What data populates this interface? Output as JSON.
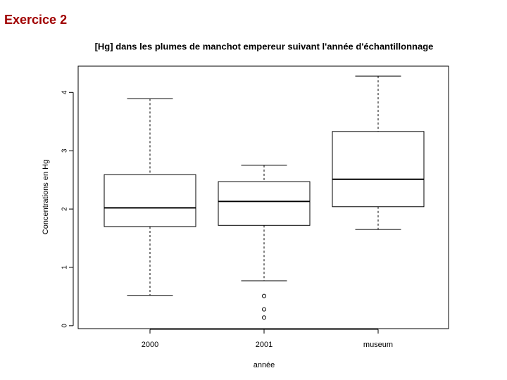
{
  "heading": "Exercice 2",
  "chart_data": {
    "type": "boxplot",
    "title": "[Hg] dans les plumes de manchot empereur suivant l'année d'échantillonnage",
    "x_label": "année",
    "y_label": "Concentrations en Hg",
    "categories": [
      "2000",
      "2001",
      "museum"
    ],
    "boxes": [
      {
        "whisker_low": 0.52,
        "q1": 1.7,
        "median": 2.02,
        "q3": 2.59,
        "whisker_high": 3.89,
        "outliers": []
      },
      {
        "whisker_low": 0.77,
        "q1": 1.72,
        "median": 2.13,
        "q3": 2.47,
        "whisker_high": 2.75,
        "outliers": [
          0.51,
          0.28,
          0.14
        ]
      },
      {
        "whisker_low": 1.65,
        "q1": 2.04,
        "median": 2.51,
        "q3": 3.33,
        "whisker_high": 4.28,
        "outliers": []
      }
    ],
    "color": "#000000",
    "ylim": [
      -0.05,
      4.45
    ],
    "yticks": [
      0,
      1,
      2,
      3,
      4
    ]
  }
}
